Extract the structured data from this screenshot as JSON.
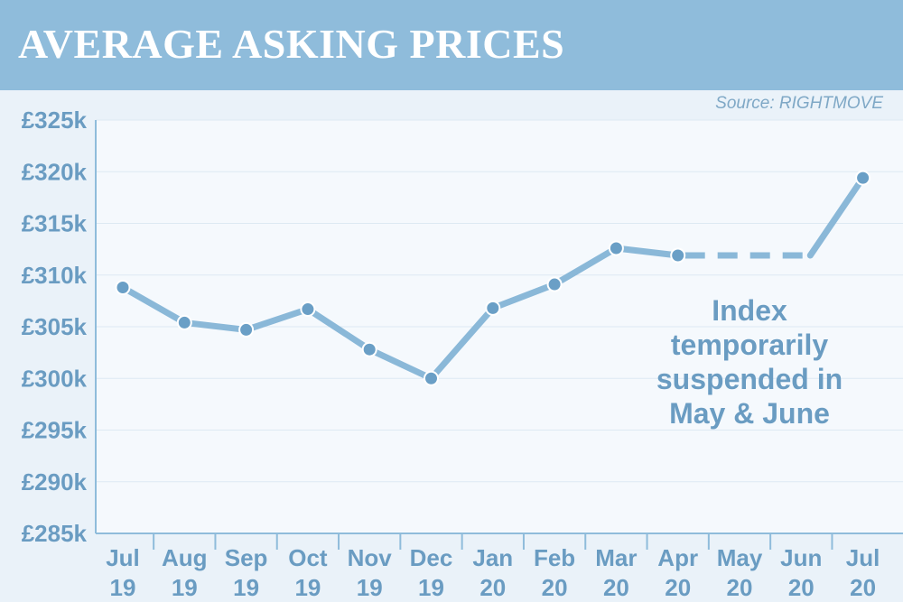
{
  "title": "AVERAGE ASKING PRICES",
  "source": "Source: RIGHTMOVE",
  "colors": {
    "header": "#8fbcdb",
    "background": "#eaf2f9",
    "plot_background": "#f5f9fd",
    "line": "#8ab8d8",
    "marker": "#6a9fc6",
    "text": "#6a9cc2"
  },
  "chart_data": {
    "type": "line",
    "title": "AVERAGE ASKING PRICES",
    "categories": [
      [
        "Jul",
        "19"
      ],
      [
        "Aug",
        "19"
      ],
      [
        "Sep",
        "19"
      ],
      [
        "Oct",
        "19"
      ],
      [
        "Nov",
        "19"
      ],
      [
        "Dec",
        "19"
      ],
      [
        "Jan",
        "20"
      ],
      [
        "Feb",
        "20"
      ],
      [
        "Mar",
        "20"
      ],
      [
        "Apr",
        "20"
      ],
      [
        "May",
        "20"
      ],
      [
        "Jun",
        "20"
      ],
      [
        "Jul",
        "20"
      ]
    ],
    "series": [
      {
        "values": [
          308.8,
          305.4,
          304.7,
          306.7,
          302.8,
          300.0,
          306.8,
          309.1,
          312.6,
          311.9,
          null,
          null,
          319.4
        ]
      }
    ],
    "suspended_range": [
      "Apr 20",
      "Jun 20"
    ],
    "suspended_value": 311.9,
    "y_unit": "£ thousands",
    "ylim": [
      285,
      325
    ],
    "yticks": [
      {
        "value": 325,
        "label": "£325k"
      },
      {
        "value": 320,
        "label": "£320k"
      },
      {
        "value": 315,
        "label": "£315k"
      },
      {
        "value": 310,
        "label": "£310k"
      },
      {
        "value": 305,
        "label": "£305k"
      },
      {
        "value": 300,
        "label": "£300k"
      },
      {
        "value": 295,
        "label": "£295k"
      },
      {
        "value": 290,
        "label": "£290k"
      },
      {
        "value": 285,
        "label": "£285k"
      }
    ],
    "grid": true,
    "annotation": [
      "Index",
      "temporarily",
      "suspended in",
      "May & June"
    ]
  }
}
